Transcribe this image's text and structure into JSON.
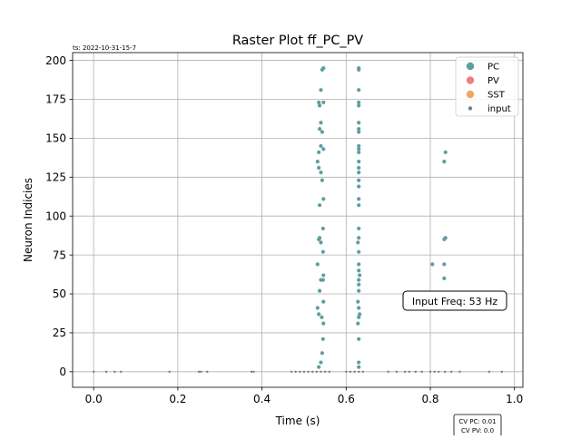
{
  "chart_data": {
    "type": "scatter",
    "title": "Raster Plot ff_PC_PV",
    "timestamp": "ts: 2022-10-31-15-7",
    "xlabel": "Time (s)",
    "ylabel": "Neuron Indicies",
    "xlim": [
      -0.05,
      1.02
    ],
    "ylim": [
      -10,
      205
    ],
    "xticks": [
      0.0,
      0.2,
      0.4,
      0.6,
      0.8,
      1.0
    ],
    "xtick_labels": [
      "0.0",
      "0.2",
      "0.4",
      "0.6",
      "0.8",
      "1.0"
    ],
    "yticks": [
      0,
      25,
      50,
      75,
      100,
      125,
      150,
      175,
      200
    ],
    "ytick_labels": [
      "0",
      "25",
      "50",
      "75",
      "100",
      "125",
      "150",
      "175",
      "200"
    ],
    "grid": true,
    "legend_position": "top-right",
    "annotation": "Input Freq: 53 Hz",
    "cv_labels": [
      "CV PC: 0.01",
      "CV PV: 0.0"
    ],
    "series": [
      {
        "name": "PC",
        "color": "#5f9ea0",
        "points": [
          [
            0.535,
            3
          ],
          [
            0.54,
            6
          ],
          [
            0.543,
            12
          ],
          [
            0.545,
            21
          ],
          [
            0.546,
            31
          ],
          [
            0.542,
            35
          ],
          [
            0.535,
            37
          ],
          [
            0.532,
            41
          ],
          [
            0.546,
            45
          ],
          [
            0.537,
            52
          ],
          [
            0.54,
            59
          ],
          [
            0.546,
            62
          ],
          [
            0.545,
            59
          ],
          [
            0.532,
            69
          ],
          [
            0.545,
            77
          ],
          [
            0.54,
            83
          ],
          [
            0.535,
            85
          ],
          [
            0.537,
            86
          ],
          [
            0.545,
            92
          ],
          [
            0.537,
            107
          ],
          [
            0.546,
            111
          ],
          [
            0.543,
            123
          ],
          [
            0.532,
            135
          ],
          [
            0.54,
            128
          ],
          [
            0.535,
            131
          ],
          [
            0.546,
            143
          ],
          [
            0.535,
            141
          ],
          [
            0.54,
            145
          ],
          [
            0.543,
            154
          ],
          [
            0.537,
            156
          ],
          [
            0.54,
            160
          ],
          [
            0.537,
            171
          ],
          [
            0.546,
            173
          ],
          [
            0.535,
            173
          ],
          [
            0.54,
            181
          ],
          [
            0.543,
            194
          ],
          [
            0.546,
            195
          ],
          [
            0.63,
            3
          ],
          [
            0.63,
            6
          ],
          [
            0.63,
            21
          ],
          [
            0.628,
            31
          ],
          [
            0.63,
            35
          ],
          [
            0.632,
            37
          ],
          [
            0.63,
            41
          ],
          [
            0.628,
            45
          ],
          [
            0.63,
            52
          ],
          [
            0.63,
            56
          ],
          [
            0.63,
            59
          ],
          [
            0.632,
            62
          ],
          [
            0.63,
            65
          ],
          [
            0.63,
            69
          ],
          [
            0.63,
            77
          ],
          [
            0.628,
            83
          ],
          [
            0.63,
            86
          ],
          [
            0.63,
            92
          ],
          [
            0.63,
            107
          ],
          [
            0.63,
            111
          ],
          [
            0.63,
            119
          ],
          [
            0.63,
            123
          ],
          [
            0.63,
            128
          ],
          [
            0.63,
            131
          ],
          [
            0.63,
            135
          ],
          [
            0.63,
            141
          ],
          [
            0.63,
            143
          ],
          [
            0.63,
            145
          ],
          [
            0.63,
            154
          ],
          [
            0.63,
            156
          ],
          [
            0.63,
            160
          ],
          [
            0.63,
            171
          ],
          [
            0.63,
            173
          ],
          [
            0.63,
            181
          ],
          [
            0.63,
            194
          ],
          [
            0.63,
            195
          ],
          [
            0.805,
            69
          ],
          [
            0.833,
            60
          ],
          [
            0.833,
            69
          ],
          [
            0.833,
            85
          ],
          [
            0.836,
            86
          ],
          [
            0.833,
            135
          ],
          [
            0.836,
            141
          ]
        ]
      },
      {
        "name": "PV",
        "color": "#f08080",
        "points": []
      },
      {
        "name": "SST",
        "color": "#f4a460",
        "points": []
      },
      {
        "name": "input",
        "color": "#708090",
        "points": [
          [
            0.0,
            0
          ],
          [
            0.03,
            0
          ],
          [
            0.05,
            0
          ],
          [
            0.065,
            0
          ],
          [
            0.18,
            0
          ],
          [
            0.25,
            0
          ],
          [
            0.255,
            0
          ],
          [
            0.27,
            0
          ],
          [
            0.375,
            0
          ],
          [
            0.38,
            0
          ],
          [
            0.47,
            0
          ],
          [
            0.48,
            0
          ],
          [
            0.49,
            0
          ],
          [
            0.5,
            0
          ],
          [
            0.51,
            0
          ],
          [
            0.52,
            0
          ],
          [
            0.53,
            0
          ],
          [
            0.54,
            0
          ],
          [
            0.55,
            0
          ],
          [
            0.56,
            0
          ],
          [
            0.6,
            0
          ],
          [
            0.61,
            0
          ],
          [
            0.62,
            0
          ],
          [
            0.63,
            0
          ],
          [
            0.64,
            0
          ],
          [
            0.7,
            0
          ],
          [
            0.72,
            0
          ],
          [
            0.74,
            0
          ],
          [
            0.75,
            0
          ],
          [
            0.765,
            0
          ],
          [
            0.78,
            0
          ],
          [
            0.8,
            0
          ],
          [
            0.81,
            0
          ],
          [
            0.82,
            0
          ],
          [
            0.835,
            0
          ],
          [
            0.85,
            0
          ],
          [
            0.87,
            0
          ],
          [
            0.94,
            0
          ],
          [
            0.97,
            0
          ]
        ]
      }
    ]
  }
}
